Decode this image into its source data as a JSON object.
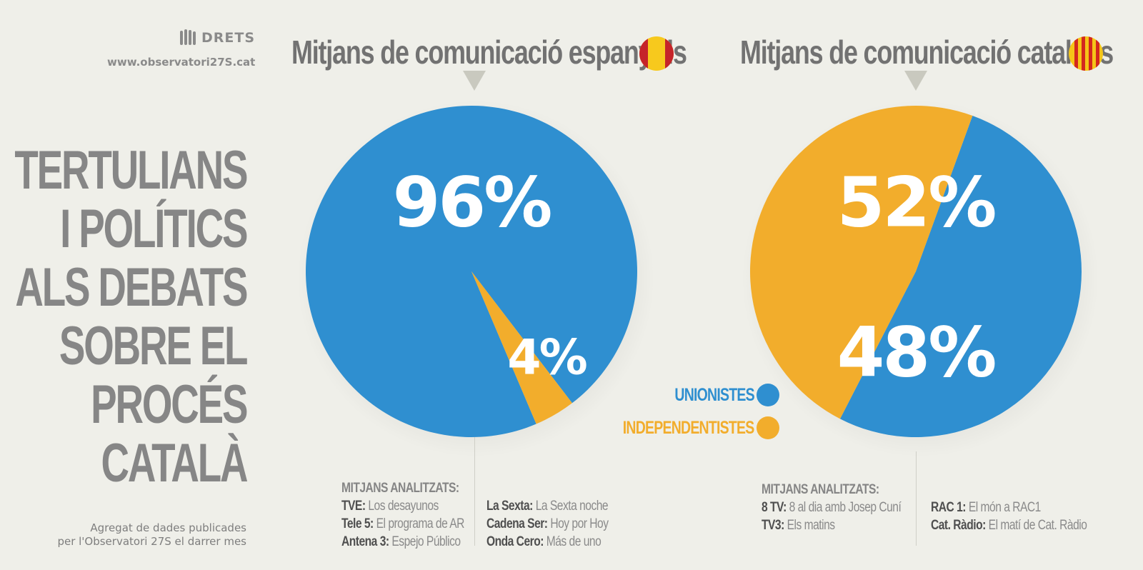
{
  "logo": {
    "brand": "DRETS",
    "url": "www.observatori27S.cat"
  },
  "title_lines": [
    "TERTULIANS",
    "I POLÍTICS",
    "ALS DEBATS",
    "SOBRE EL",
    "PROCÉS",
    "CATALÀ"
  ],
  "aggregate_note": [
    "Agregat de dades publicades",
    "per l'Observatori 27S el darrer mes"
  ],
  "colors": {
    "unionistes": "#2f8fd0",
    "independentistes": "#f2ad2c",
    "background": "#efefe9",
    "spain_red": "#c5242a",
    "spain_yellow": "#f7c91d",
    "catalan_red": "#d3281f",
    "catalan_yellow": "#f5c518"
  },
  "legend": {
    "unionistes": "UNIONISTES",
    "independentistes": "INDEPENDENTISTES"
  },
  "chart_data": [
    {
      "type": "pie",
      "title": "Mitjans de comunicació espanyols",
      "labels": [
        "UNIONISTES",
        "INDEPENDENTISTES"
      ],
      "values": [
        96,
        4
      ],
      "value_labels": [
        "96%",
        "4%"
      ]
    },
    {
      "type": "pie",
      "title": "Mitjans de comunicació catalans",
      "labels": [
        "UNIONISTES",
        "INDEPENDENTISTES"
      ],
      "values": [
        52,
        48
      ],
      "value_labels": [
        "52%",
        "48%"
      ]
    }
  ],
  "media_es": {
    "heading": "MITJANS ANALITZATS:",
    "left": [
      {
        "name": "TVE:",
        "program": "Los desayunos"
      },
      {
        "name": "Tele 5:",
        "program": "El programa de AR"
      },
      {
        "name": "Antena 3:",
        "program": "Espejo Público"
      }
    ],
    "right": [
      {
        "name": "La Sexta:",
        "program": "La Sexta noche"
      },
      {
        "name": "Cadena Ser:",
        "program": "Hoy por Hoy"
      },
      {
        "name": "Onda Cero:",
        "program": "Más de uno"
      }
    ]
  },
  "media_cat": {
    "heading": "MITJANS ANALITZATS:",
    "left": [
      {
        "name": "8 TV:",
        "program": "8 al dia amb Josep Cuní"
      },
      {
        "name": "TV3:",
        "program": "Els matins"
      }
    ],
    "right": [
      {
        "name": "RAC 1:",
        "program": "El món a RAC1"
      },
      {
        "name": "Cat. Ràdio:",
        "program": "El matí de Cat. Ràdio"
      }
    ]
  }
}
